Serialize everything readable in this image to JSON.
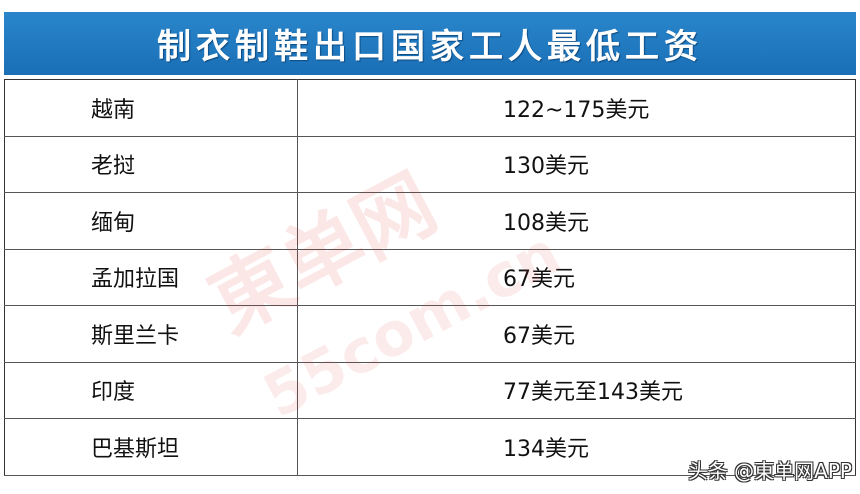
{
  "title": "制衣制鞋出口国家工人最低工资",
  "rows": [
    {
      "country": "越南",
      "wage": "122~175美元"
    },
    {
      "country": "老挝",
      "wage": "130美元"
    },
    {
      "country": "缅甸",
      "wage": "108美元"
    },
    {
      "country": "孟加拉国",
      "wage": "67美元"
    },
    {
      "country": "斯里兰卡",
      "wage": "67美元"
    },
    {
      "country": "印度",
      "wage": "77美元至143美元"
    },
    {
      "country": "巴基斯坦",
      "wage": "134美元"
    }
  ],
  "watermark": {
    "logo": "東单网",
    "domain": "55com.cn"
  },
  "credit": "头条 @東单网APP",
  "colors": {
    "title_bar": "#1f78c1",
    "watermark": "#e63c3c"
  }
}
